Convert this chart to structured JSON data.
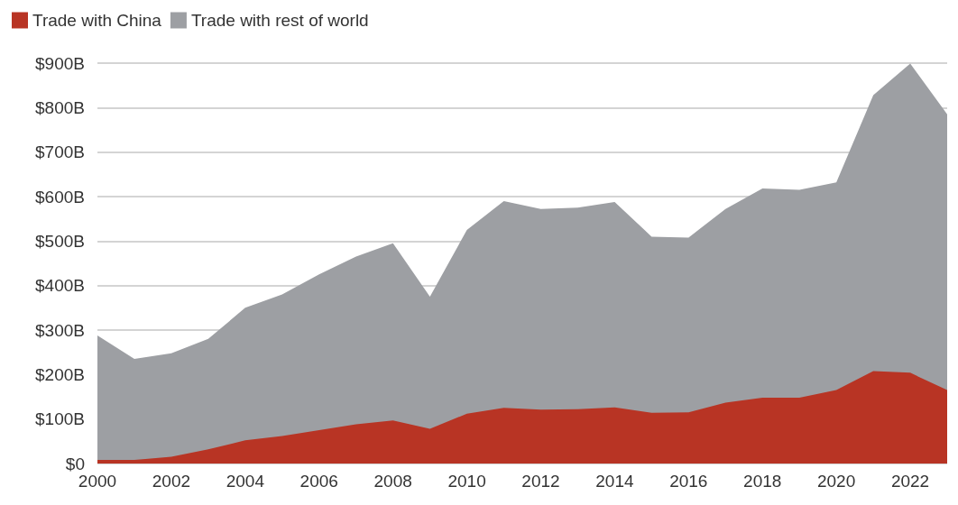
{
  "chart_data": {
    "type": "area",
    "stacked": true,
    "x": [
      2000,
      2001,
      2002,
      2003,
      2004,
      2005,
      2006,
      2007,
      2008,
      2009,
      2010,
      2011,
      2012,
      2013,
      2014,
      2015,
      2016,
      2017,
      2018,
      2019,
      2020,
      2021,
      2022,
      2023
    ],
    "series": [
      {
        "name": "Trade with China",
        "color": "#b83424",
        "values": [
          8,
          8,
          15,
          32,
          52,
          62,
          75,
          88,
          97,
          78,
          112,
          125,
          121,
          122,
          126,
          114,
          115,
          137,
          148,
          148,
          165,
          208,
          204,
          165
        ]
      },
      {
        "name": "Trade with rest of world",
        "color": "#9d9fa3",
        "values": [
          280,
          227,
          233,
          248,
          298,
          318,
          350,
          377,
          398,
          297,
          413,
          465,
          451,
          453,
          462,
          396,
          393,
          435,
          470,
          467,
          467,
          620,
          695,
          620
        ]
      }
    ],
    "xlim": [
      2000,
      2023
    ],
    "xticks": [
      2000,
      2002,
      2004,
      2006,
      2008,
      2010,
      2012,
      2014,
      2016,
      2018,
      2020,
      2022
    ],
    "ylim": [
      0,
      900
    ],
    "yticks": [
      {
        "value": 0,
        "label": "$0"
      },
      {
        "value": 100,
        "label": "$100B"
      },
      {
        "value": 200,
        "label": "$200B"
      },
      {
        "value": 300,
        "label": "$300B"
      },
      {
        "value": 400,
        "label": "$400B"
      },
      {
        "value": 500,
        "label": "$500B"
      },
      {
        "value": 600,
        "label": "$600B"
      },
      {
        "value": 700,
        "label": "$700B"
      },
      {
        "value": 800,
        "label": "$800B"
      },
      {
        "value": 900,
        "label": "$900B"
      }
    ],
    "grid": "y",
    "legend": "top left"
  }
}
